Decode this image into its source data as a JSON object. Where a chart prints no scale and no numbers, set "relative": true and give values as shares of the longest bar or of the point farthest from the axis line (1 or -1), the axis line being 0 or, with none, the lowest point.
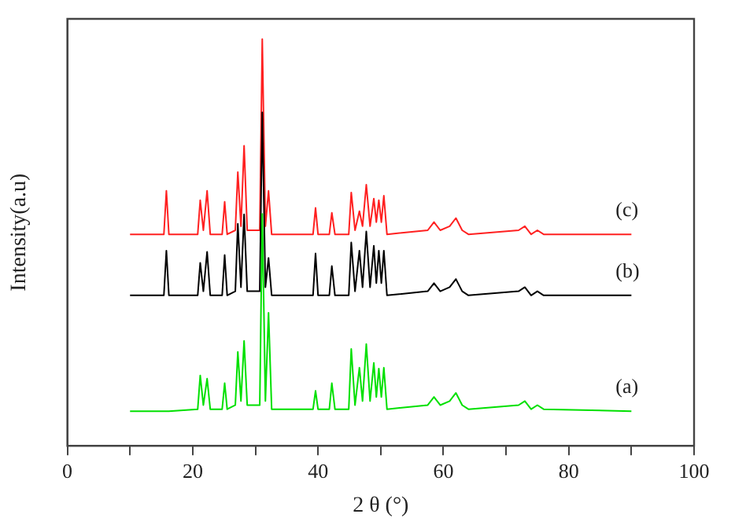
{
  "chart_data": {
    "type": "line",
    "xlabel": "2 θ (°)",
    "ylabel": "Intensity(a.u)",
    "relative": true,
    "grid": false,
    "legend": false,
    "marker": "none",
    "line_style": "solid",
    "xlim": [
      0,
      100
    ],
    "xticks": [
      0,
      {
        "value": 10,
        "label": null
      },
      20,
      {
        "value": 30,
        "label": null
      },
      40,
      {
        "value": 50,
        "label": null
      },
      60,
      {
        "value": 70,
        "label": null
      },
      80,
      {
        "value": 90,
        "label": null
      },
      100
    ],
    "x": [
      10,
      15.4,
      15.8,
      16.2,
      20.8,
      21.2,
      21.7,
      22.3,
      22.8,
      24.7,
      25.1,
      25.5,
      26.8,
      27.2,
      27.7,
      28.2,
      28.7,
      30.7,
      31.1,
      31.6,
      32.1,
      32.6,
      39.2,
      39.6,
      40,
      41.8,
      42.2,
      42.7,
      44.9,
      45.3,
      45.9,
      46.6,
      47.1,
      47.7,
      48.3,
      48.9,
      49.3,
      49.7,
      50.1,
      50.5,
      51,
      57.5,
      58.5,
      59.5,
      61,
      62,
      63,
      64,
      72,
      73,
      74,
      75,
      76,
      90
    ],
    "series": [
      {
        "name": "(a)",
        "color": "#00e000",
        "values": [
          0.085,
          0.085,
          0.085,
          0.085,
          0.09,
          0.173,
          0.1,
          0.165,
          0.09,
          0.09,
          0.154,
          0.09,
          0.1,
          0.231,
          0.11,
          0.258,
          0.1,
          0.1,
          0.57,
          0.11,
          0.327,
          0.09,
          0.09,
          0.135,
          0.09,
          0.09,
          0.154,
          0.09,
          0.09,
          0.238,
          0.1,
          0.192,
          0.11,
          0.25,
          0.11,
          0.204,
          0.12,
          0.19,
          0.12,
          0.192,
          0.09,
          0.1,
          0.12,
          0.1,
          0.11,
          0.13,
          0.1,
          0.09,
          0.1,
          0.11,
          0.09,
          0.1,
          0.09,
          0.085
        ]
      },
      {
        "name": "(b)",
        "color": "#000000",
        "values": [
          0.37,
          0.37,
          0.48,
          0.37,
          0.37,
          0.45,
          0.38,
          0.477,
          0.37,
          0.37,
          0.469,
          0.37,
          0.38,
          0.546,
          0.39,
          0.569,
          0.38,
          0.38,
          0.82,
          0.39,
          0.462,
          0.37,
          0.37,
          0.473,
          0.37,
          0.37,
          0.442,
          0.37,
          0.37,
          0.5,
          0.38,
          0.48,
          0.39,
          0.527,
          0.39,
          0.492,
          0.4,
          0.48,
          0.4,
          0.48,
          0.37,
          0.38,
          0.4,
          0.38,
          0.39,
          0.41,
          0.38,
          0.37,
          0.38,
          0.39,
          0.37,
          0.38,
          0.37,
          0.37
        ]
      },
      {
        "name": "(c)",
        "color": "#ff2020",
        "values": [
          0.52,
          0.52,
          0.627,
          0.52,
          0.52,
          0.604,
          0.53,
          0.627,
          0.52,
          0.52,
          0.6,
          0.52,
          0.53,
          0.673,
          0.54,
          0.738,
          0.53,
          0.53,
          1,
          0.54,
          0.627,
          0.52,
          0.52,
          0.585,
          0.52,
          0.52,
          0.573,
          0.52,
          0.52,
          0.623,
          0.53,
          0.577,
          0.54,
          0.642,
          0.54,
          0.608,
          0.55,
          0.604,
          0.55,
          0.615,
          0.52,
          0.53,
          0.55,
          0.53,
          0.54,
          0.56,
          0.53,
          0.52,
          0.53,
          0.54,
          0.52,
          0.53,
          0.52,
          0.52
        ]
      }
    ]
  }
}
